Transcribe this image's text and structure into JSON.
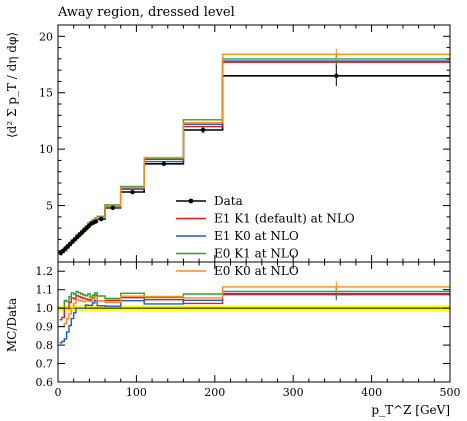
{
  "chart_data": [
    {
      "type": "line",
      "subtype": "step-histogram",
      "title": "Away region, dressed level",
      "ylabel": "⟨d² Σ p_T / dη dφ⟩",
      "xlabel": "",
      "xlim": [
        0,
        500
      ],
      "ylim": [
        0,
        21
      ],
      "yticks": [
        5,
        10,
        15,
        20
      ],
      "legend": {
        "position": "center-right"
      },
      "bin_edges": [
        2,
        5,
        8,
        11,
        14,
        17,
        20,
        23,
        26,
        29,
        32,
        35,
        38,
        41,
        44,
        47,
        50,
        60,
        80,
        110,
        160,
        210,
        500
      ],
      "data": {
        "name": "Data",
        "color": "#000000",
        "values": [
          0.8,
          1.0,
          1.2,
          1.4,
          1.6,
          1.8,
          2.0,
          2.2,
          2.4,
          2.6,
          2.8,
          3.0,
          3.2,
          3.4,
          3.5,
          3.6,
          3.8,
          4.8,
          6.2,
          8.7,
          11.7,
          16.5
        ],
        "errors": [
          0.05,
          0.05,
          0.05,
          0.05,
          0.05,
          0.05,
          0.06,
          0.06,
          0.06,
          0.06,
          0.07,
          0.07,
          0.07,
          0.08,
          0.08,
          0.08,
          0.1,
          0.12,
          0.15,
          0.2,
          0.3,
          0.9
        ]
      },
      "series": [
        {
          "name": "E1 K1 (default) at NLO",
          "color": "#e41a1c",
          "values": [
            0.75,
            0.95,
            1.2,
            1.4,
            1.65,
            1.9,
            2.1,
            2.35,
            2.55,
            2.75,
            2.95,
            3.15,
            3.35,
            3.55,
            3.7,
            3.85,
            3.95,
            5.0,
            6.55,
            9.1,
            12.0,
            17.7
          ]
        },
        {
          "name": "E1 K0 at NLO",
          "color": "#1a5ccf",
          "values": [
            0.65,
            0.82,
            1.0,
            1.22,
            1.45,
            1.7,
            1.95,
            2.2,
            2.4,
            2.6,
            2.8,
            3.05,
            3.25,
            3.45,
            3.6,
            3.75,
            3.85,
            4.85,
            6.45,
            8.9,
            12.2,
            17.8
          ]
        },
        {
          "name": "E0 K1 at NLO",
          "color": "#2ca02c",
          "values": [
            0.8,
            1.0,
            1.25,
            1.45,
            1.7,
            1.95,
            2.15,
            2.4,
            2.6,
            2.8,
            3.0,
            3.2,
            3.45,
            3.6,
            3.75,
            3.9,
            4.05,
            5.05,
            6.7,
            9.2,
            12.6,
            18.0
          ]
        },
        {
          "name": "E0 K0 at NLO",
          "color": "#ff8c1a",
          "values": [
            0.72,
            0.9,
            1.1,
            1.32,
            1.55,
            1.8,
            2.05,
            2.3,
            2.5,
            2.7,
            2.9,
            3.12,
            3.32,
            3.52,
            3.68,
            3.82,
            3.95,
            4.95,
            6.6,
            9.25,
            12.35,
            18.4
          ]
        }
      ]
    },
    {
      "type": "line",
      "subtype": "ratio",
      "ylabel": "MC/Data",
      "xlabel": "p_T^Z [GeV]",
      "xlim": [
        0,
        500
      ],
      "ylim": [
        0.6,
        1.25
      ],
      "yticks": [
        0.6,
        0.7,
        0.8,
        0.9,
        1.0,
        1.1,
        1.2
      ],
      "xticks": [
        0,
        100,
        200,
        300,
        400,
        500
      ],
      "band": {
        "color": "#ffff00",
        "lower": 0.985,
        "upper": 1.015
      }
    }
  ]
}
